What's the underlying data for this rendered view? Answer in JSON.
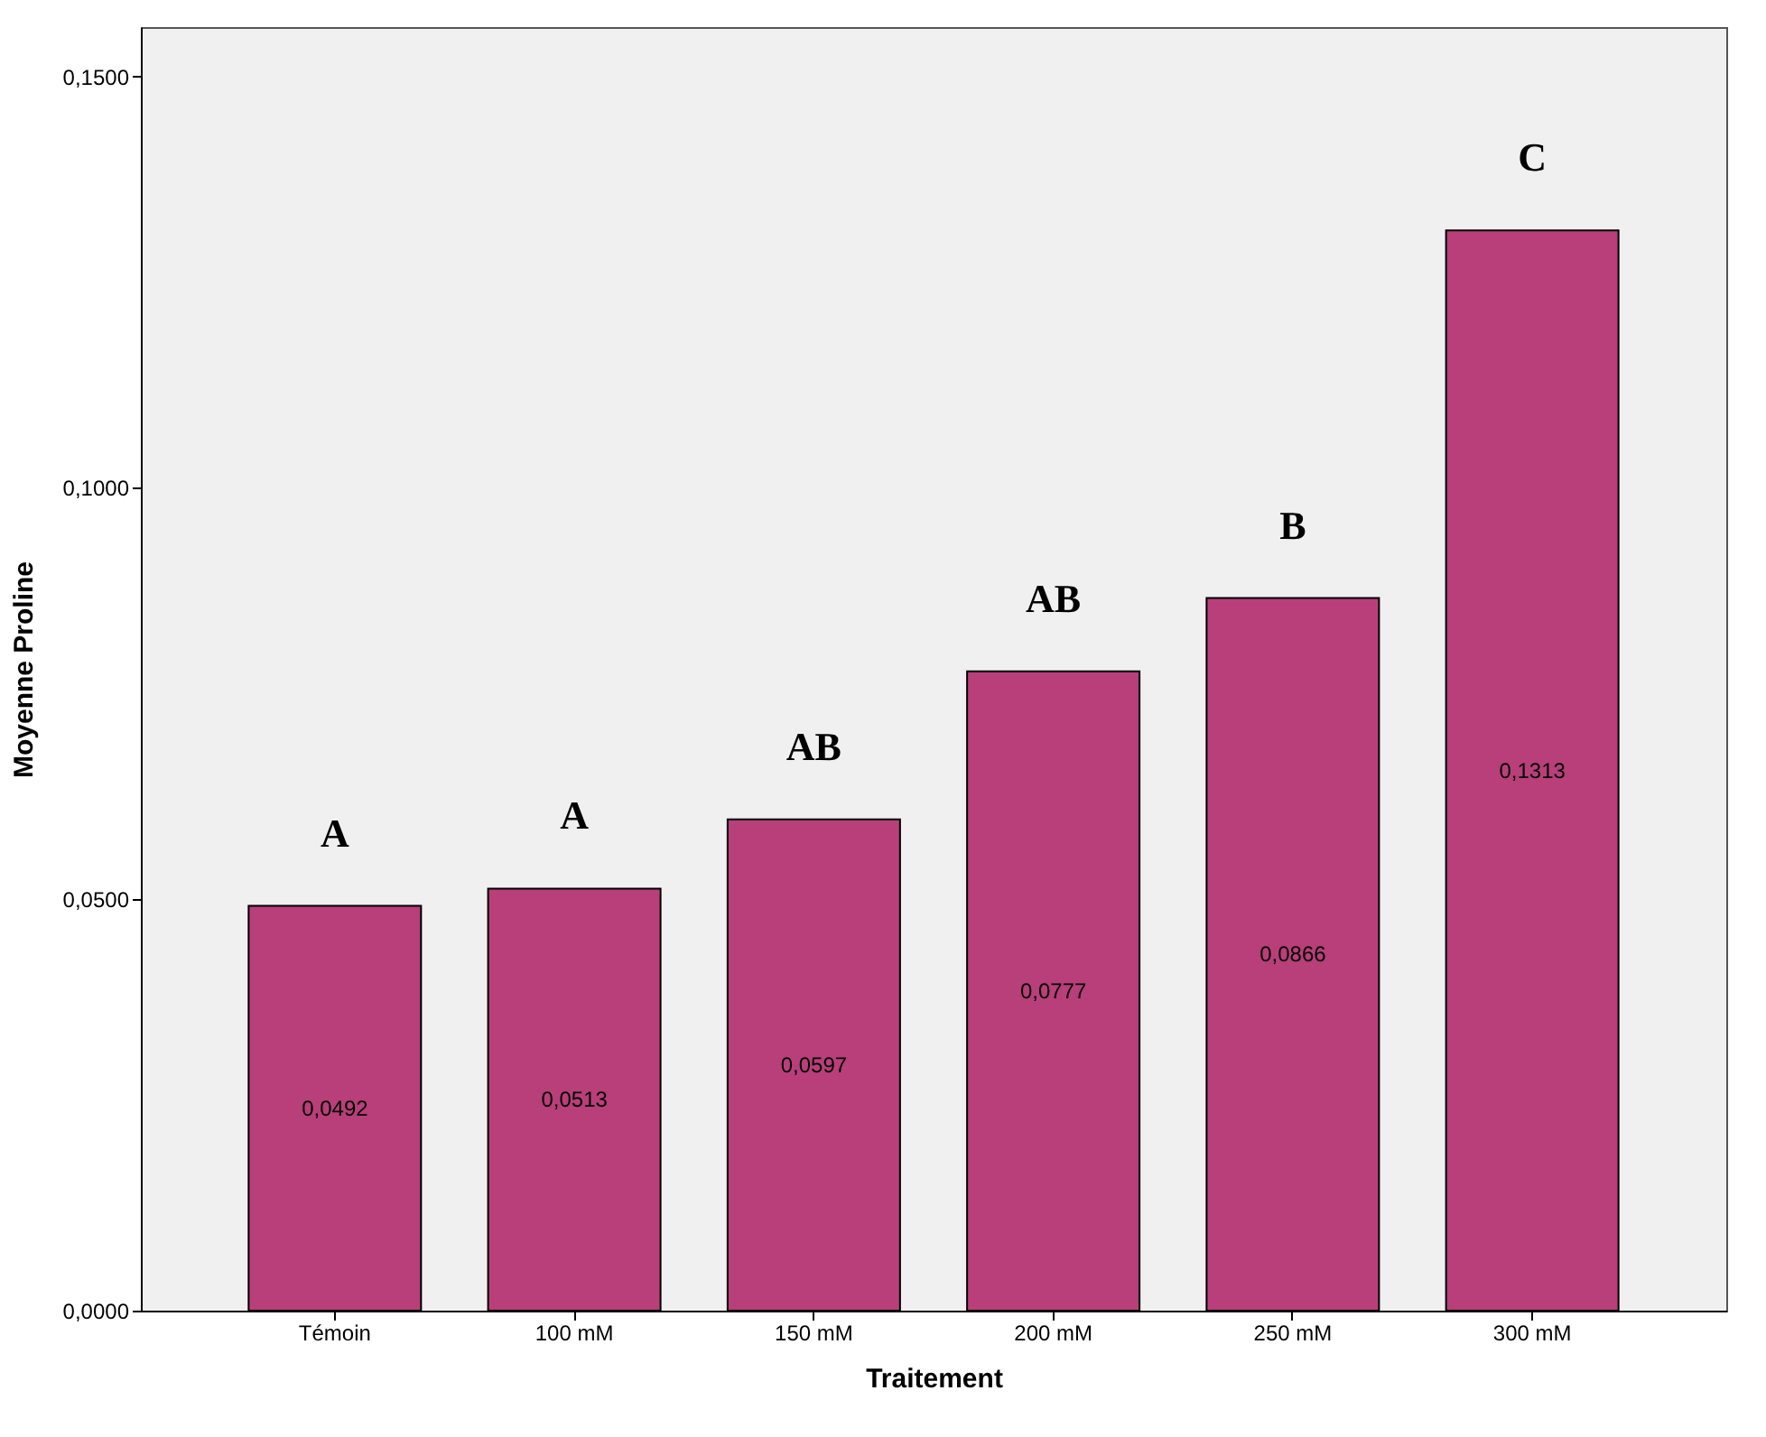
{
  "chart_data": {
    "type": "bar",
    "xlabel": "Traitement",
    "ylabel": "Moyenne Proline",
    "categories": [
      "Témoin",
      "100 mM",
      "150 mM",
      "200 mM",
      "250 mM",
      "300 mM"
    ],
    "values": [
      0.0492,
      0.0513,
      0.0597,
      0.0777,
      0.0866,
      0.1313
    ],
    "value_labels": [
      "0,0492",
      "0,0513",
      "0,0597",
      "0,0777",
      "0,0866",
      "0,1313"
    ],
    "color": "#b83f7a",
    "ylim": [
      0,
      0.156
    ],
    "yticks": [
      {
        "value": 0,
        "label": "0,0000"
      },
      {
        "value": 0.05,
        "label": "0,0500"
      },
      {
        "value": 0.1,
        "label": "0,1000"
      },
      {
        "value": 0.15,
        "label": "0,1500"
      }
    ],
    "grid": false,
    "annotations": [
      "A",
      "A",
      "AB",
      "AB",
      "B",
      "C"
    ]
  }
}
